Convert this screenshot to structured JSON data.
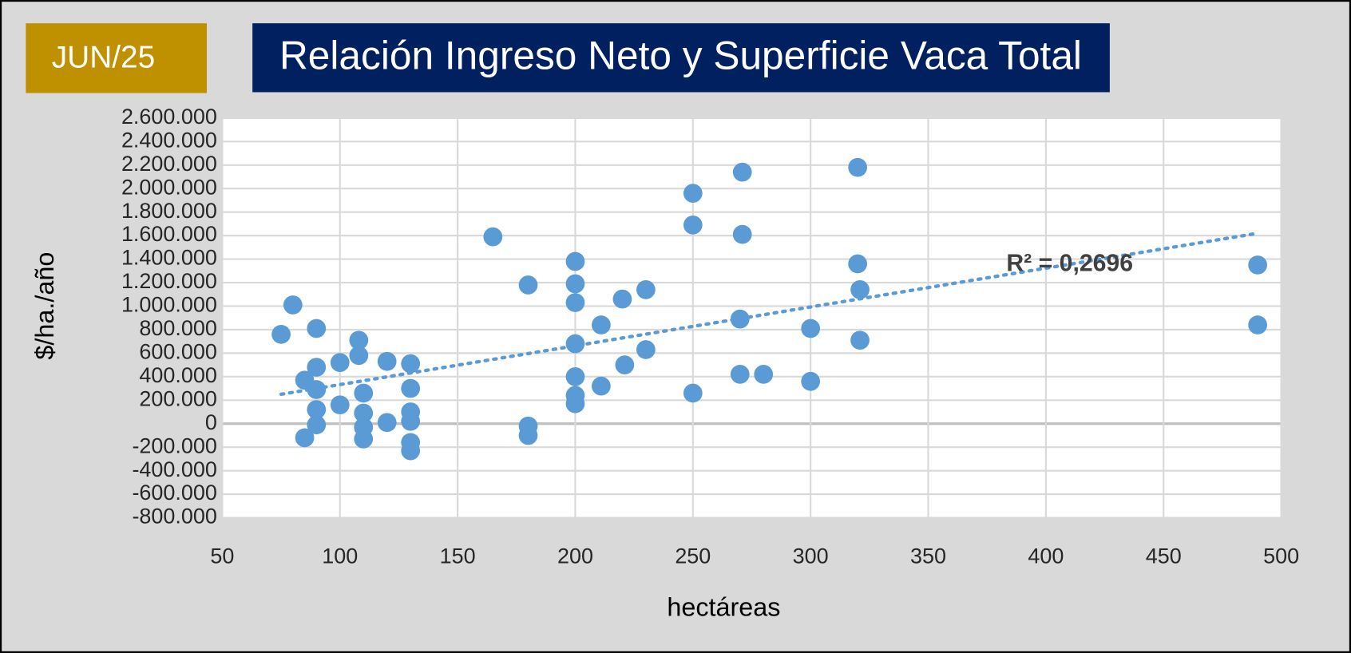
{
  "chart_data": {
    "type": "scatter",
    "badge": "JUN/25",
    "title": "Relación Ingreso Neto y Superficie Vaca Total",
    "x_label": "hectáreas",
    "y_label": "$/ha./año",
    "color": "#5b9bd5",
    "x": [
      75,
      80,
      85,
      85,
      90,
      90,
      90,
      90,
      90,
      100,
      100,
      108,
      108,
      110,
      110,
      110,
      110,
      120,
      120,
      130,
      130,
      130,
      130,
      130,
      130,
      165,
      180,
      180,
      180,
      200,
      200,
      200,
      200,
      200,
      200,
      200,
      211,
      211,
      220,
      221,
      230,
      230,
      250,
      250,
      250,
      271,
      271,
      270,
      270,
      280,
      300,
      300,
      320,
      320,
      321,
      321,
      490,
      490
    ],
    "values": [
      760000,
      1010000,
      370000,
      -120000,
      810000,
      480000,
      290000,
      120000,
      -10000,
      520000,
      160000,
      710000,
      580000,
      260000,
      90000,
      -30000,
      -130000,
      530000,
      10000,
      510000,
      300000,
      100000,
      20000,
      -160000,
      -230000,
      1590000,
      1180000,
      -20000,
      -100000,
      1380000,
      1190000,
      1030000,
      680000,
      400000,
      240000,
      170000,
      840000,
      320000,
      1060000,
      500000,
      1140000,
      630000,
      1960000,
      1690000,
      260000,
      2140000,
      1610000,
      890000,
      420000,
      420000,
      810000,
      360000,
      2180000,
      1360000,
      1140000,
      710000,
      1350000,
      840000
    ],
    "trendline": {
      "x": [
        75,
        490
      ],
      "values": [
        250000,
        1620000
      ],
      "label": "R² = 0,2696",
      "color": "#5b9bd5"
    },
    "xlim": [
      50,
      500
    ],
    "xticks": [
      50,
      100,
      150,
      200,
      250,
      300,
      350,
      400,
      450,
      500
    ],
    "ylim": [
      -800000,
      2600000
    ],
    "yticks": [
      {
        "value": -800000,
        "label": "-800.000"
      },
      {
        "value": -600000,
        "label": "-600.000"
      },
      {
        "value": -400000,
        "label": "-400.000"
      },
      {
        "value": -200000,
        "label": "-200.000"
      },
      0,
      {
        "value": 200000,
        "label": "200.000"
      },
      {
        "value": 400000,
        "label": "400.000"
      },
      {
        "value": 600000,
        "label": "600.000"
      },
      {
        "value": 800000,
        "label": "800.000"
      },
      {
        "value": 1000000,
        "label": "1.000.000"
      },
      {
        "value": 1200000,
        "label": "1.200.000"
      },
      {
        "value": 1400000,
        "label": "1.400.000"
      },
      {
        "value": 1600000,
        "label": "1.600.000"
      },
      {
        "value": 1800000,
        "label": "1.800.000"
      },
      {
        "value": 2000000,
        "label": "2.000.000"
      },
      {
        "value": 2200000,
        "label": "2.200.000"
      },
      {
        "value": 2400000,
        "label": "2.400.000"
      },
      {
        "value": 2600000,
        "label": "2.600.000"
      }
    ],
    "grid": true
  }
}
